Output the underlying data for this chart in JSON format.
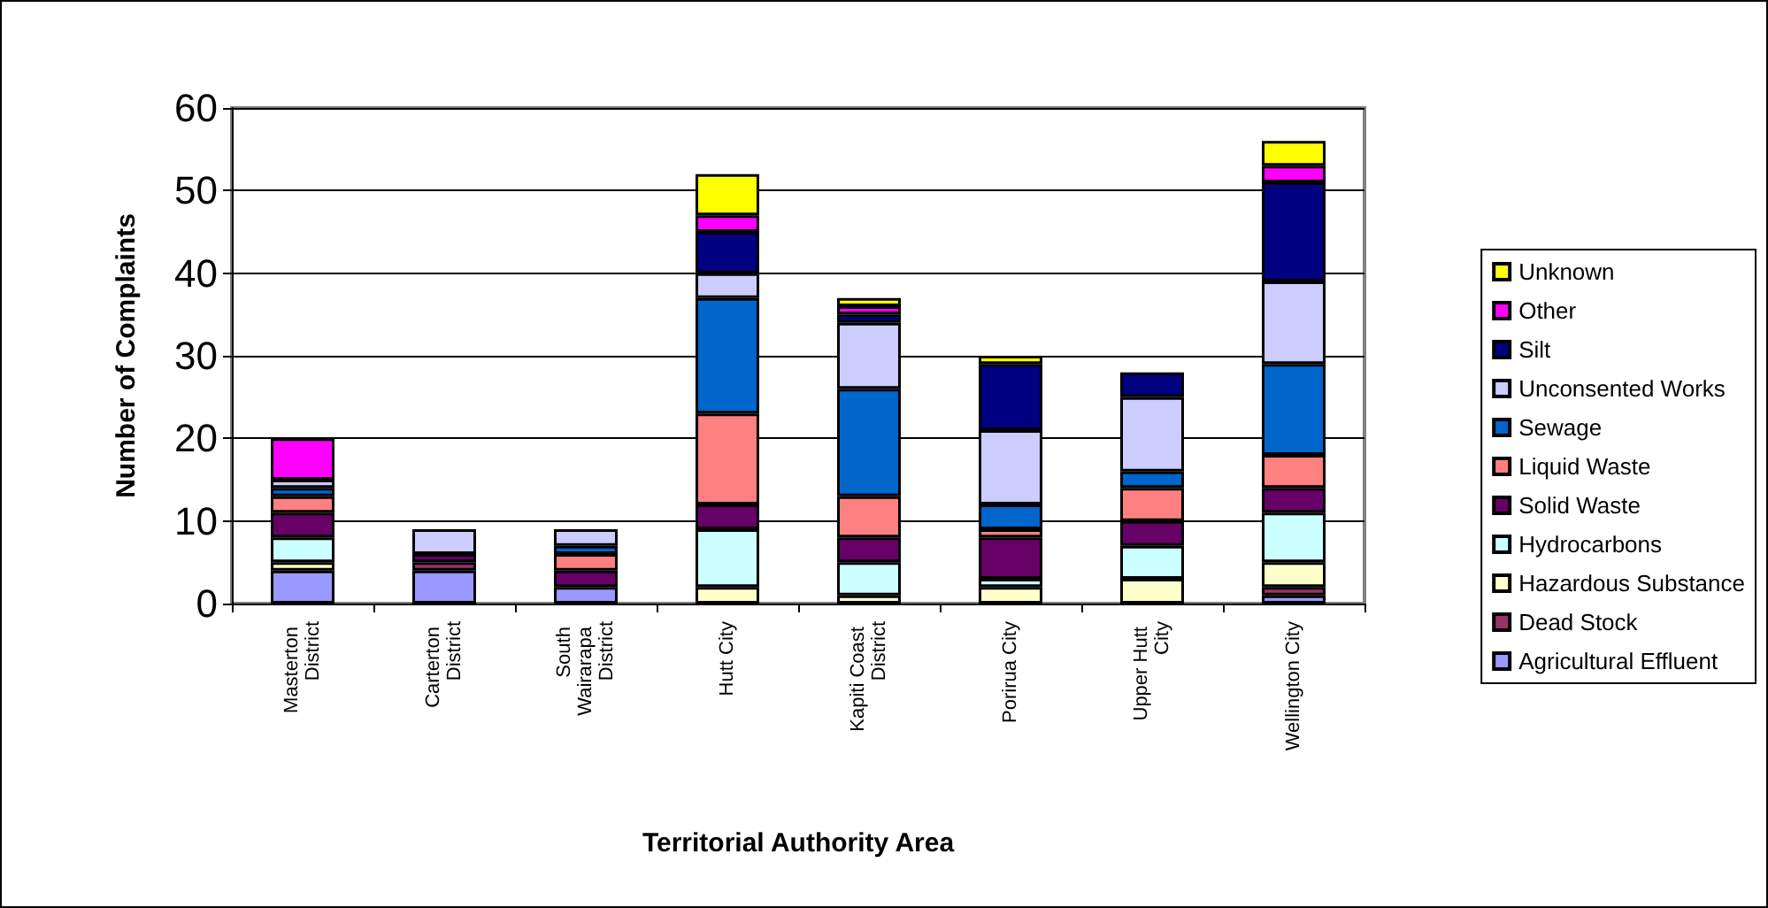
{
  "chart_data": {
    "type": "bar",
    "stacked": true,
    "xlabel": "Territorial Authority Area",
    "ylabel": "Number of Complaints",
    "categories": [
      "Masterton District",
      "Carterton District",
      "South Wairarapa District",
      "Hutt City",
      "Kapiti Coast District",
      "Porirua City",
      "Upper Hutt City",
      "Wellington City"
    ],
    "series": [
      {
        "name": "Agricultural Effluent",
        "color": "#9999ff",
        "values": [
          4,
          4,
          2,
          0,
          0,
          0,
          0,
          1
        ]
      },
      {
        "name": "Dead Stock",
        "color": "#993366",
        "values": [
          0,
          1,
          0,
          0,
          0,
          0,
          0,
          1
        ]
      },
      {
        "name": "Hazardous Substance",
        "color": "#ffffcc",
        "values": [
          1,
          0,
          0,
          2,
          1,
          2,
          3,
          3
        ]
      },
      {
        "name": "Hydrocarbons",
        "color": "#ccffff",
        "values": [
          3,
          0,
          0,
          7,
          4,
          1,
          4,
          6
        ]
      },
      {
        "name": "Solid Waste",
        "color": "#660066",
        "values": [
          3,
          1,
          2,
          3,
          3,
          5,
          3,
          3
        ]
      },
      {
        "name": "Liquid Waste",
        "color": "#ff8080",
        "values": [
          2,
          0,
          2,
          11,
          5,
          1,
          4,
          4
        ]
      },
      {
        "name": "Sewage",
        "color": "#0066cc",
        "values": [
          1,
          0,
          1,
          14,
          13,
          3,
          2,
          11
        ]
      },
      {
        "name": "Unconsented Works",
        "color": "#ccccff",
        "values": [
          1,
          3,
          2,
          3,
          8,
          9,
          9,
          10
        ]
      },
      {
        "name": "Silt",
        "color": "#000080",
        "values": [
          0,
          0,
          0,
          5,
          1,
          8,
          3,
          12
        ]
      },
      {
        "name": "Other",
        "color": "#ff00ff",
        "values": [
          5,
          0,
          0,
          2,
          1,
          0,
          0,
          2
        ]
      },
      {
        "name": "Unknown",
        "color": "#ffff00",
        "values": [
          0,
          0,
          0,
          5,
          1,
          1,
          0,
          3
        ]
      }
    ],
    "ylim": [
      0,
      60
    ],
    "yticks": [
      0,
      10,
      20,
      30,
      40,
      50,
      60
    ],
    "grid": "y",
    "legend": "right"
  }
}
